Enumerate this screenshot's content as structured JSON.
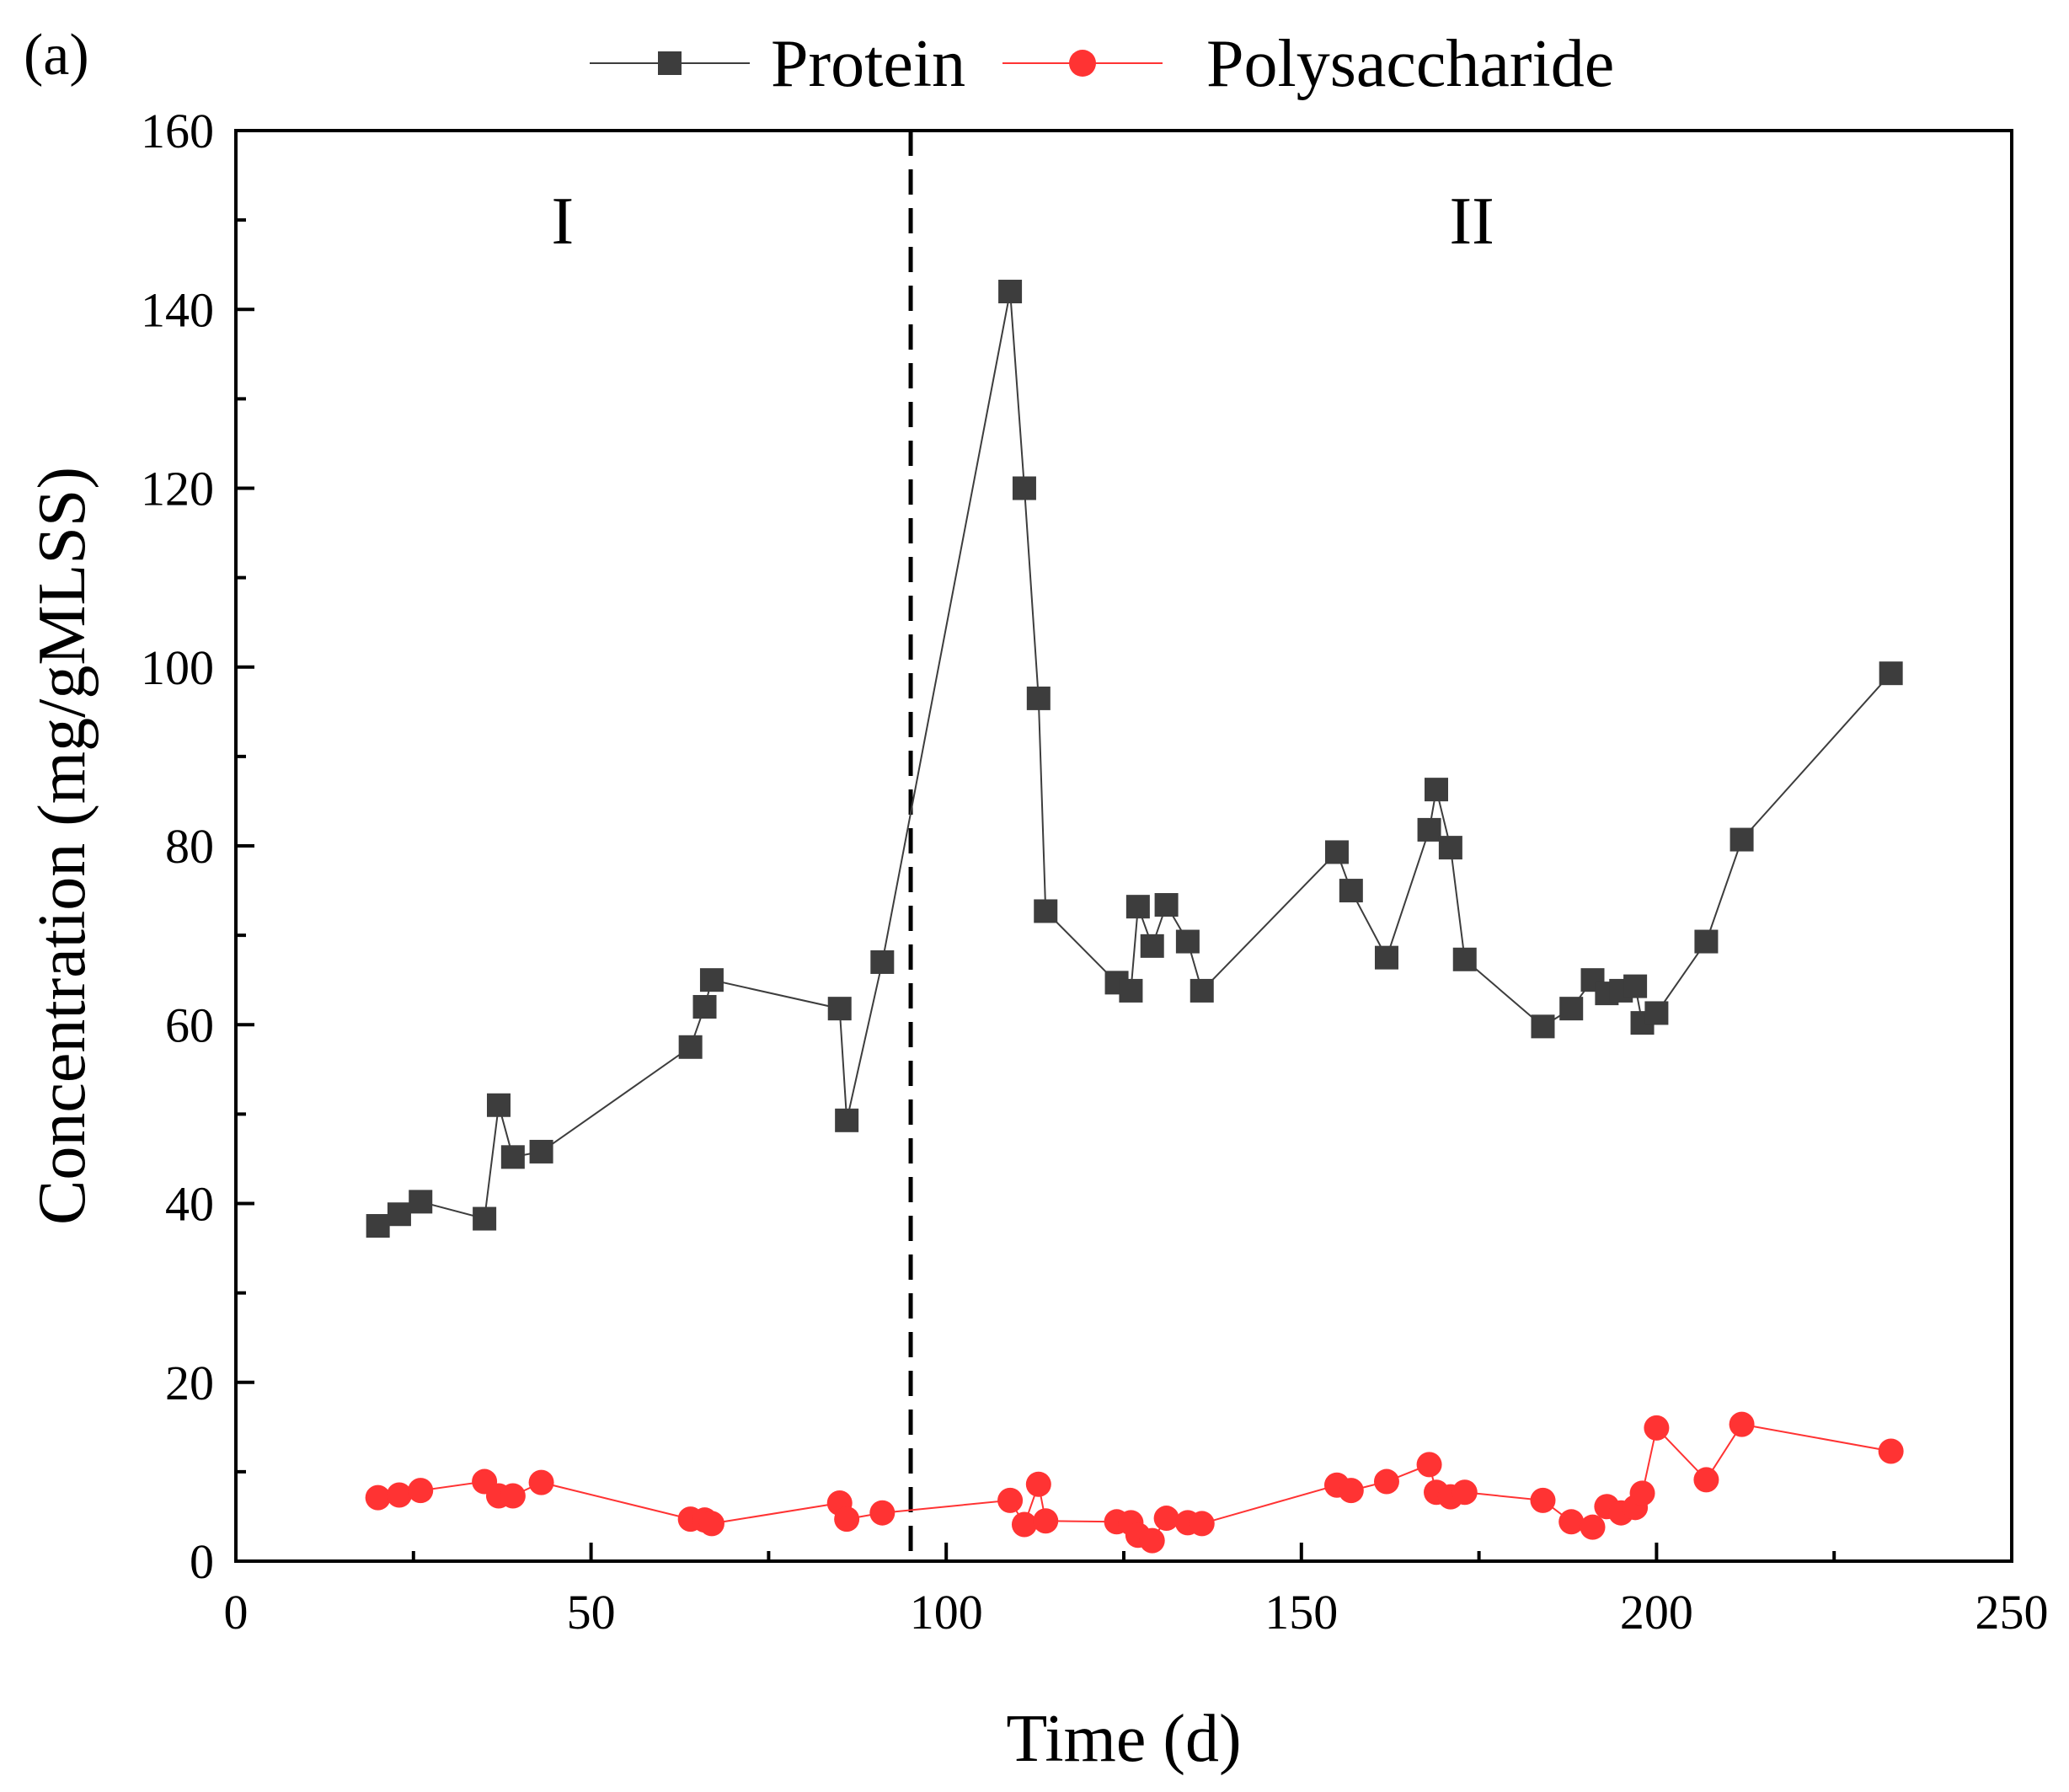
{
  "chart_data": {
    "type": "line",
    "panel_label": "(a)",
    "xlabel": "Time (d)",
    "ylabel": "Concentration (mg/gMLSS)",
    "xlim": [
      0,
      250
    ],
    "ylim": [
      0,
      160
    ],
    "x_ticks": [
      0,
      50,
      100,
      150,
      200,
      250
    ],
    "y_ticks": [
      0,
      20,
      40,
      60,
      80,
      100,
      120,
      140,
      160
    ],
    "legend_position": "top",
    "phase_divider_x": 95,
    "regions": [
      {
        "label": "I",
        "x": 46,
        "y": 150
      },
      {
        "label": "II",
        "x": 174,
        "y": 150
      }
    ],
    "series": [
      {
        "name": "Protein",
        "marker": "square",
        "color": "#3d3d3d",
        "line_color": "#3d3d3d",
        "x": [
          20,
          23,
          26,
          35,
          37,
          39,
          43,
          64,
          66,
          67,
          85,
          86,
          91,
          109,
          111,
          113,
          114,
          124,
          126,
          127,
          129,
          131,
          134,
          136,
          155,
          157,
          162,
          168,
          169,
          171,
          173,
          184,
          188,
          191,
          193,
          195,
          197,
          198,
          200,
          207,
          212,
          233
        ],
        "values": [
          37.5,
          38.8,
          40.2,
          38.3,
          51.0,
          45.2,
          45.8,
          57.5,
          62.0,
          65.0,
          61.8,
          49.3,
          67.0,
          142.0,
          120.0,
          96.5,
          72.7,
          64.7,
          63.8,
          73.2,
          68.8,
          73.4,
          69.3,
          63.8,
          79.3,
          75.0,
          67.5,
          81.8,
          86.3,
          79.8,
          67.3,
          59.8,
          61.8,
          65.0,
          63.5,
          63.8,
          64.3,
          60.2,
          61.3,
          69.3,
          80.7,
          99.3
        ]
      },
      {
        "name": "Polysaccharide",
        "marker": "circle",
        "color": "#ff3333",
        "line_color": "#ff3333",
        "x": [
          20,
          23,
          26,
          35,
          37,
          39,
          43,
          64,
          66,
          67,
          85,
          86,
          91,
          109,
          111,
          113,
          114,
          124,
          126,
          127,
          129,
          131,
          134,
          136,
          155,
          157,
          162,
          168,
          169,
          171,
          173,
          184,
          188,
          191,
          193,
          195,
          197,
          198,
          200,
          207,
          212,
          233
        ],
        "values": [
          7.1,
          7.4,
          7.9,
          8.9,
          7.3,
          7.3,
          8.8,
          4.7,
          4.6,
          4.2,
          6.5,
          4.7,
          5.4,
          6.8,
          4.1,
          8.6,
          4.5,
          4.4,
          4.3,
          2.9,
          2.3,
          4.8,
          4.3,
          4.2,
          8.5,
          7.9,
          8.9,
          10.8,
          7.7,
          7.2,
          7.7,
          6.8,
          4.4,
          3.8,
          6.1,
          5.4,
          6.0,
          7.6,
          14.9,
          9.1,
          15.3,
          12.3
        ]
      }
    ]
  }
}
